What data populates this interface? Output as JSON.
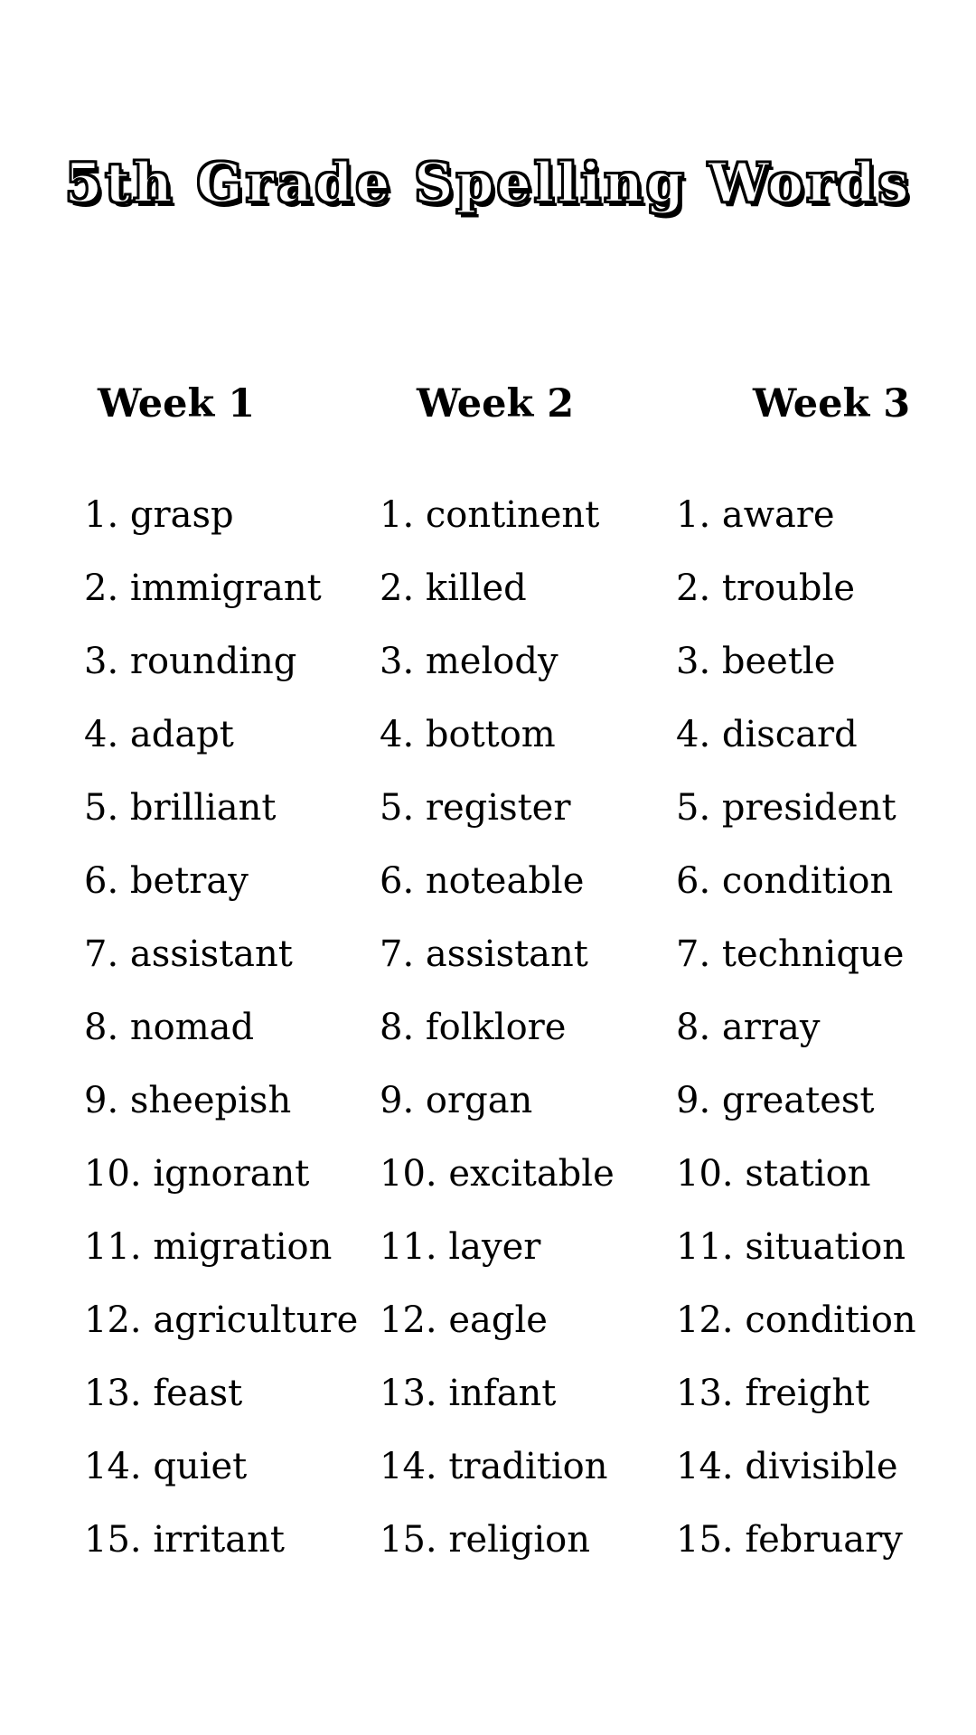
{
  "page": {
    "background_color": "#ffffff",
    "text_color": "#000000"
  },
  "title": "5th Grade Spelling Words",
  "columns": [
    {
      "header": "Week 1",
      "items": [
        "1. grasp",
        "2. immigrant",
        "3. rounding",
        "4. adapt",
        "5. brilliant",
        "6. betray",
        "7. assistant",
        "8. nomad",
        "9. sheepish",
        "10. ignorant",
        "11. migration",
        "12. agriculture",
        "13. feast",
        "14. quiet",
        "15. irritant"
      ]
    },
    {
      "header": "Week 2",
      "items": [
        "1. continent",
        "2. killed",
        "3. melody",
        "4. bottom",
        "5. register",
        "6. noteable",
        "7. assistant",
        "8. folklore",
        "9. organ",
        "10. excitable",
        "11. layer",
        "12. eagle",
        "13. infant",
        "14. tradition",
        "15. religion"
      ]
    },
    {
      "header": "Week 3",
      "items": [
        "1. aware",
        "2. trouble",
        "3. beetle",
        "4. discard",
        "5. president",
        "6. condition",
        "7. technique",
        "8. array",
        "9. greatest",
        "10. station",
        "11. situation",
        "12. condition",
        "13. freight",
        "14. divisible",
        "15. february"
      ]
    }
  ]
}
